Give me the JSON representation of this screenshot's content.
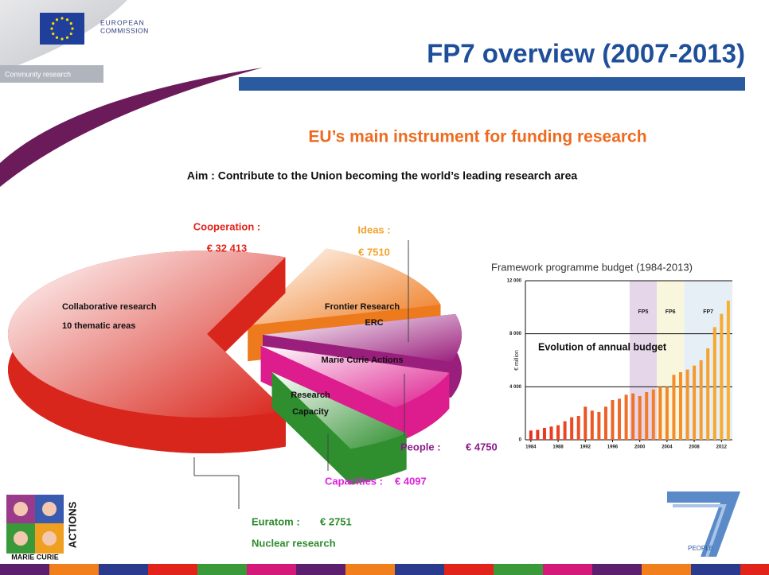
{
  "header": {
    "org": "EUROPEAN",
    "org2": "COMMISSION",
    "tagline": "Community research",
    "title": "FP7 overview (2007-2013)"
  },
  "subtitle": "EU’s main instrument for funding research",
  "aim": "Aim : Contribute to the Union becoming the world’s leading research area",
  "chart_data": [
    {
      "type": "pie",
      "categories": [
        "Cooperation :",
        "Ideas :",
        "People :",
        "Capacities :",
        "Euratom :"
      ],
      "values": [
        32413,
        7510,
        4750,
        4097,
        2751
      ],
      "value_labels": [
        "€ 32 413",
        "€ 7510",
        "€ 4750",
        "€ 4097",
        "€ 2751"
      ],
      "colors": [
        "#d9261c",
        "#ee7a1e",
        "#9a1e7c",
        "#dd1d8e",
        "#2f8f2f"
      ],
      "label_colors": [
        "#e2231a",
        "#f3a32a",
        "#8b1a8b",
        "#e020e0",
        "#2e8b2e"
      ],
      "slice_labels": [
        [
          "Collaborative research",
          "10 thematic areas"
        ],
        [
          "Frontier Research",
          "ERC"
        ],
        [
          "Marie Curie Actions"
        ],
        [
          "Research",
          "Capacity"
        ],
        [
          "Nuclear research"
        ]
      ]
    },
    {
      "type": "bar",
      "title": "Framework programme budget (1984-2013)",
      "y_label": "€ million",
      "annotation": "Evolution of annual budget",
      "x": [
        1984,
        1985,
        1986,
        1987,
        1988,
        1989,
        1990,
        1991,
        1992,
        1993,
        1994,
        1995,
        1996,
        1997,
        1998,
        1999,
        2000,
        2001,
        2002,
        2003,
        2004,
        2005,
        2006,
        2007,
        2008,
        2009,
        2010,
        2011,
        2012,
        2013
      ],
      "values": [
        700,
        750,
        900,
        1000,
        1100,
        1400,
        1700,
        1800,
        2500,
        2200,
        2100,
        2500,
        3000,
        3100,
        3400,
        3500,
        3300,
        3600,
        3800,
        4000,
        4000,
        4900,
        5100,
        5300,
        5600,
        6000,
        6900,
        8500,
        9500,
        10500
      ],
      "colors": [
        "#e83020",
        "#f8b030"
      ],
      "xlim": [
        1983.2,
        2013.6
      ],
      "xticks": [
        1984,
        1988,
        1992,
        1996,
        2000,
        2004,
        2008,
        2012
      ],
      "ylim": [
        0,
        12000
      ],
      "yticks": [
        0,
        {
          "value": 4000,
          "label": "4 000"
        },
        {
          "value": 8000,
          "label": "8 000"
        },
        {
          "value": 12000,
          "label": "12 000"
        }
      ],
      "grid": true,
      "periods": [
        {
          "label": "FP5",
          "start": 1998.5,
          "end": 2002.5,
          "color": "#e6d6ea"
        },
        {
          "label": "FP6",
          "start": 2002.5,
          "end": 2006.5,
          "color": "#f8f6dc"
        },
        {
          "label": "FP7",
          "start": 2006.5,
          "end": 2013.6,
          "color": "#e6eef6"
        }
      ]
    }
  ],
  "footer": {
    "logo_left_top": "ACTIONS",
    "logo_left_bottom": "MARIE CURIE",
    "logo_right": "PEOPLE"
  }
}
